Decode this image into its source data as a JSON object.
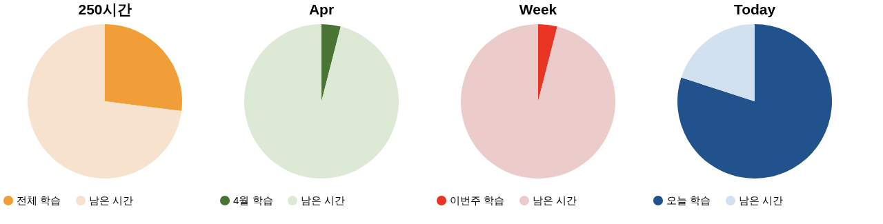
{
  "chart_data": [
    {
      "type": "pie",
      "title": "250시간",
      "categories": [
        "전체 학습",
        "남은 시간"
      ],
      "values": [
        27,
        73
      ],
      "colors": [
        "#f19e38",
        "#f7e2ce"
      ],
      "legend": "bottom"
    },
    {
      "type": "pie",
      "title": "Apr",
      "categories": [
        "4월 학습",
        "남은 시간"
      ],
      "values": [
        4,
        96
      ],
      "colors": [
        "#4a7434",
        "#dce9d5"
      ],
      "legend": "bottom"
    },
    {
      "type": "pie",
      "title": "Week",
      "categories": [
        "이번주 학습",
        "남은 시간"
      ],
      "values": [
        4,
        96
      ],
      "colors": [
        "#e93323",
        "#eccccb"
      ],
      "legend": "bottom"
    },
    {
      "type": "pie",
      "title": "Today",
      "categories": [
        "오늘 학습",
        "남은 시간"
      ],
      "values": [
        80,
        20
      ],
      "colors": [
        "#21528c",
        "#d2e1f0"
      ],
      "legend": "bottom"
    }
  ]
}
